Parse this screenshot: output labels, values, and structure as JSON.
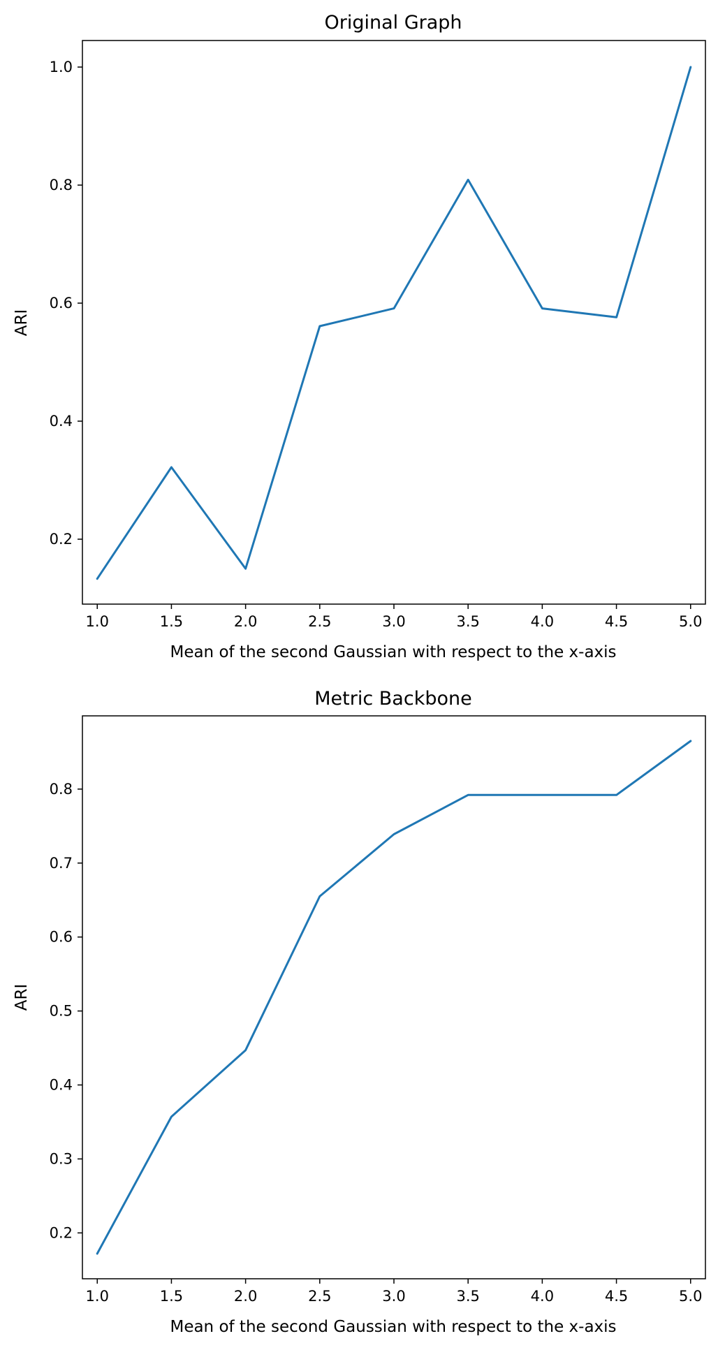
{
  "chart_data": [
    {
      "type": "line",
      "title": "Original Graph",
      "xlabel": "Mean of the second Gaussian with respect to the x-axis",
      "ylabel": "ARI",
      "x": [
        1.0,
        1.5,
        2.0,
        2.5,
        3.0,
        3.5,
        4.0,
        4.5,
        5.0
      ],
      "series": [
        {
          "values": [
            0.133,
            0.322,
            0.15,
            0.561,
            0.591,
            0.809,
            0.591,
            0.576,
            1.0
          ]
        }
      ],
      "xlim": [
        0.9,
        5.1
      ],
      "ylim": [
        0.09,
        1.045
      ],
      "xticks": [
        1.0,
        1.5,
        2.0,
        2.5,
        3.0,
        3.5,
        4.0,
        4.5,
        5.0
      ],
      "xtick_labels": [
        "1.0",
        "1.5",
        "2.0",
        "2.5",
        "3.0",
        "3.5",
        "4.0",
        "4.5",
        "5.0"
      ],
      "yticks": [
        0.2,
        0.4,
        0.6,
        0.8,
        1.0
      ],
      "ytick_labels": [
        "0.2",
        "0.4",
        "0.6",
        "0.8",
        "1.0"
      ],
      "grid": false,
      "color": "#1f77b4"
    },
    {
      "type": "line",
      "title": "Metric Backbone",
      "xlabel": "Mean of the second Gaussian with respect to the x-axis",
      "ylabel": "ARI",
      "x": [
        1.0,
        1.5,
        2.0,
        2.5,
        3.0,
        3.5,
        4.0,
        4.5,
        5.0
      ],
      "series": [
        {
          "values": [
            0.172,
            0.357,
            0.447,
            0.655,
            0.739,
            0.792,
            0.792,
            0.792,
            0.865
          ]
        }
      ],
      "xlim": [
        0.9,
        5.1
      ],
      "ylim": [
        0.138,
        0.899
      ],
      "xticks": [
        1.0,
        1.5,
        2.0,
        2.5,
        3.0,
        3.5,
        4.0,
        4.5,
        5.0
      ],
      "xtick_labels": [
        "1.0",
        "1.5",
        "2.0",
        "2.5",
        "3.0",
        "3.5",
        "4.0",
        "4.5",
        "5.0"
      ],
      "yticks": [
        0.2,
        0.3,
        0.4,
        0.5,
        0.6,
        0.7,
        0.8
      ],
      "ytick_labels": [
        "0.2",
        "0.3",
        "0.4",
        "0.5",
        "0.6",
        "0.7",
        "0.8"
      ],
      "grid": false,
      "color": "#1f77b4"
    }
  ]
}
